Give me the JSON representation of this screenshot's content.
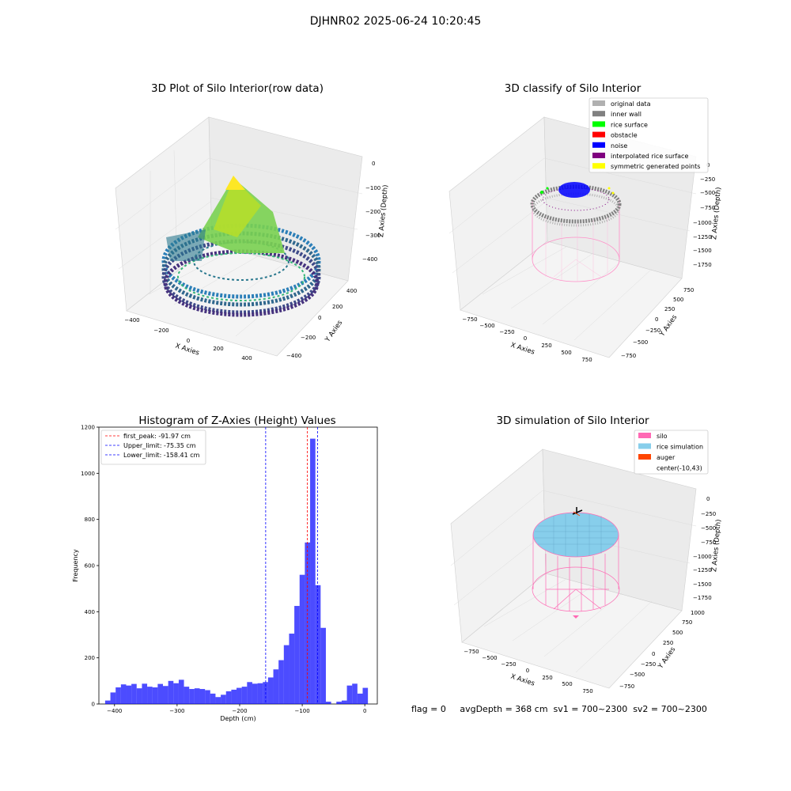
{
  "figure_title": "DJHNR02 2025-06-24 10:20:45",
  "panels": {
    "raw": {
      "title": "3D Plot of Silo Interior(row data)",
      "x_label": "X Axies",
      "y_label": "Y Axies",
      "z_label": "Z Axies (Depth)",
      "x_ticks": [
        "−400",
        "−200",
        "0",
        "200",
        "400"
      ],
      "y_ticks": [
        "−400",
        "−200",
        "0",
        "200",
        "400"
      ],
      "z_ticks": [
        "0",
        "−100",
        "−200",
        "−300",
        "−400"
      ]
    },
    "classify": {
      "title": "3D classify of Silo Interior",
      "x_label": "X Axies",
      "y_label": "Y Axies",
      "z_label": "Z Axies (Depth)",
      "x_ticks": [
        "−750",
        "−500",
        "−250",
        "0",
        "250",
        "500",
        "750"
      ],
      "y_ticks": [
        "−750",
        "−500",
        "−250",
        "0",
        "250",
        "500",
        "750"
      ],
      "z_ticks": [
        "0",
        "−250",
        "−500",
        "−750",
        "−1000",
        "−1250",
        "−1500",
        "−1750"
      ],
      "legend": [
        {
          "label": "original data",
          "color": "#b0b0b0"
        },
        {
          "label": "inner wall",
          "color": "#808080"
        },
        {
          "label": "rice surface",
          "color": "#00ff00"
        },
        {
          "label": "obstacle",
          "color": "#ff0000"
        },
        {
          "label": "noise",
          "color": "#0000ff"
        },
        {
          "label": "interpolated rice surface",
          "color": "#800080"
        },
        {
          "label": "symmetric generated points",
          "color": "#ffff00"
        }
      ]
    },
    "simulation": {
      "title": "3D simulation of Silo Interior",
      "x_label": "X Axies",
      "y_label": "Y Axies",
      "z_label": "Z Axies (Depth)",
      "x_ticks": [
        "−750",
        "−500",
        "−250",
        "0",
        "250",
        "500",
        "750"
      ],
      "y_ticks": [
        "−750",
        "−500",
        "−250",
        "0",
        "250",
        "500",
        "750",
        "1000"
      ],
      "z_ticks": [
        "0",
        "−250",
        "−500",
        "−750",
        "−1000",
        "−1250",
        "−1500",
        "−1750"
      ],
      "legend": [
        {
          "label": "silo",
          "color": "#ff69b4"
        },
        {
          "label": "rice simulation",
          "color": "#87ceeb"
        },
        {
          "label": "auger",
          "color": "#ff4500"
        },
        {
          "label": "center(-10,43)",
          "color": "#ffffff"
        }
      ]
    }
  },
  "status_text": "flag = 0     avgDepth = 368 cm  sv1 = 700~2300  sv2 = 700~2300",
  "chart_data": {
    "type": "bar",
    "title": "Histogram of Z-Axies (Height) Values",
    "xlabel": "Depth (cm)",
    "ylabel": "Frequency",
    "xlim": [
      -425,
      20
    ],
    "ylim": [
      0,
      1200
    ],
    "x_ticks": [
      -400,
      -300,
      -200,
      -100,
      0
    ],
    "y_ticks": [
      0,
      200,
      400,
      600,
      800,
      1000,
      1200
    ],
    "bar_color": "#0000ff",
    "bin_start": -415,
    "bin_width": 8.4,
    "values": [
      15,
      50,
      72,
      85,
      80,
      87,
      68,
      88,
      75,
      72,
      87,
      78,
      100,
      90,
      105,
      75,
      65,
      68,
      65,
      60,
      45,
      30,
      40,
      55,
      62,
      70,
      75,
      95,
      88,
      90,
      95,
      115,
      150,
      190,
      255,
      305,
      425,
      560,
      700,
      1150,
      515,
      330,
      10,
      0,
      10,
      15,
      80,
      88,
      45,
      70
    ],
    "lines": [
      {
        "label": "first_peak: -91.97 cm",
        "x": -91.97,
        "color": "#ff0000"
      },
      {
        "label": "Upper_limit: -75.35 cm",
        "x": -75.35,
        "color": "#0000ff"
      },
      {
        "label": "Lower_limit: -158.41 cm",
        "x": -158.41,
        "color": "#0000ff"
      }
    ],
    "legend_position": "upper-left"
  }
}
